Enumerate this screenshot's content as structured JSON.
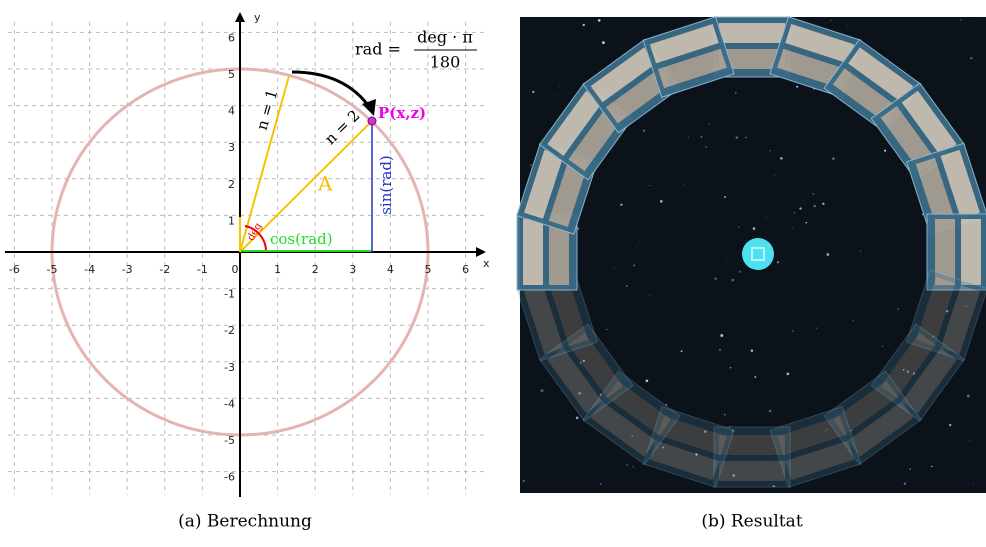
{
  "left_panel": {
    "x_axis_label": "x",
    "y_axis_label": "y",
    "x_tick_labels": [
      "-6",
      "-5",
      "-4",
      "-3",
      "-2",
      "-1",
      "0",
      "1",
      "2",
      "3",
      "4",
      "5",
      "6"
    ],
    "y_tick_labels": [
      "6",
      "5",
      "4",
      "3",
      "2",
      "1",
      "-1",
      "-2",
      "-3",
      "-4",
      "-5",
      "-6"
    ],
    "formula": {
      "lhs": "rad =",
      "numerator": "deg · π",
      "denominator": "180"
    },
    "labels": {
      "n1": "n = 1",
      "n2": "n = 2",
      "point": "P(x,z)",
      "area": "A",
      "angle": "deg",
      "cos": "cos(rad)",
      "sin": "sin(rad)"
    }
  },
  "captions": {
    "left": "(a) Berechnung",
    "right": "(b) Resultat"
  }
}
